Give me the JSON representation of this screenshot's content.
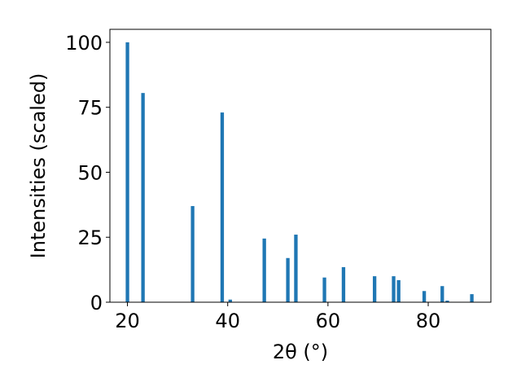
{
  "chart_data": {
    "type": "bar",
    "xlabel": "2θ (°)",
    "ylabel": "Intensities (scaled)",
    "xlim": [
      16.5,
      92.5
    ],
    "ylim": [
      0,
      105
    ],
    "xticks": [
      20,
      40,
      60,
      80
    ],
    "yticks": [
      0,
      25,
      50,
      75,
      100
    ],
    "bar_width": 0.7,
    "bar_color": "#1f77b4",
    "grid": false,
    "x": [
      20.0,
      23.1,
      33.0,
      38.9,
      40.5,
      47.3,
      52.0,
      53.6,
      59.3,
      63.1,
      69.3,
      73.1,
      74.1,
      79.2,
      82.8,
      83.8,
      88.7
    ],
    "values": [
      100,
      80.5,
      37,
      73,
      1,
      24.5,
      17,
      26,
      9.5,
      13.5,
      10,
      10,
      8.5,
      4.3,
      6.2,
      0.6,
      3.1
    ]
  }
}
